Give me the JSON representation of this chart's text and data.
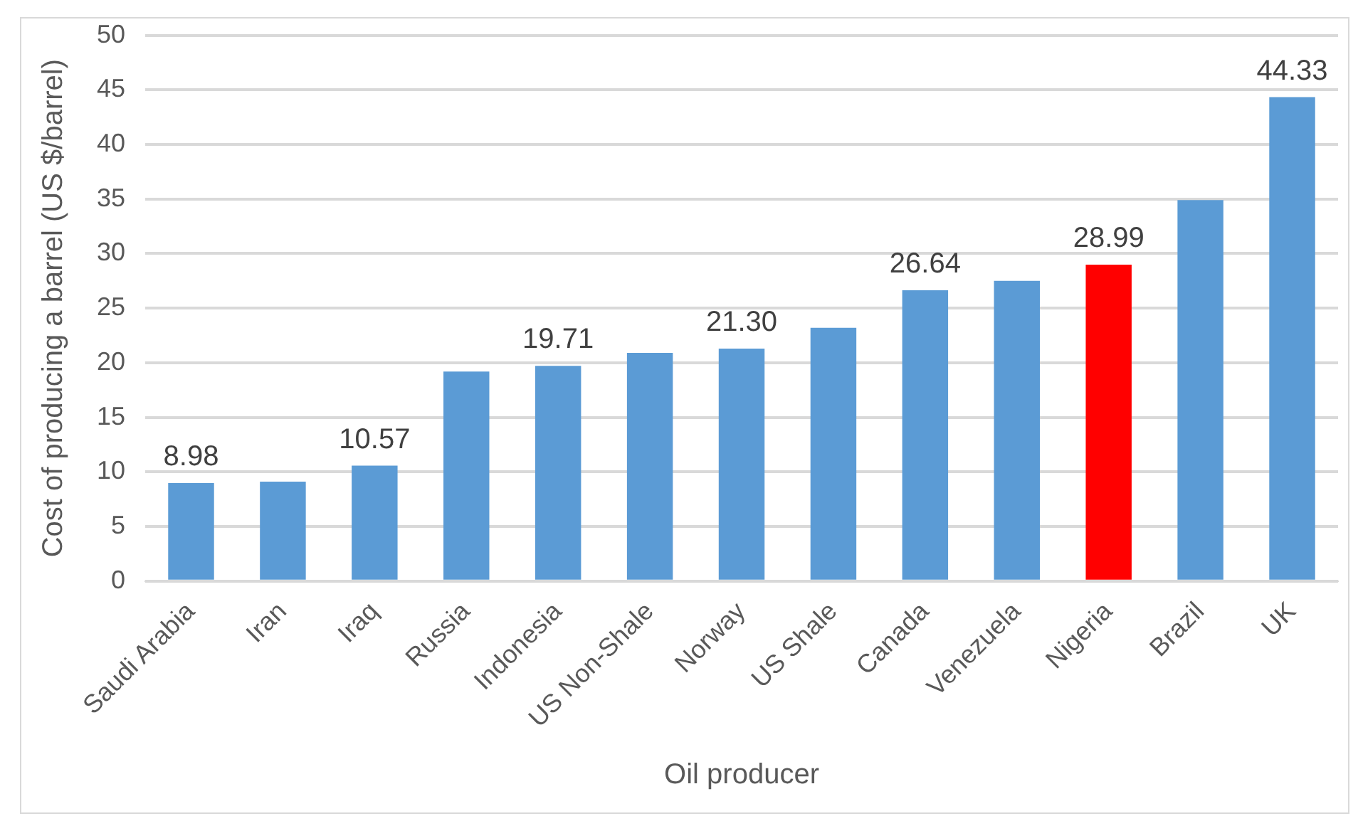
{
  "chart_data": {
    "type": "bar",
    "xlabel": "Oil producer",
    "ylabel": "Cost of producing a barrel (US $/barrel)",
    "categories": [
      "Saudi Arabia",
      "Iran",
      "Iraq",
      "Russia",
      "Indonesia",
      "US Non-Shale",
      "Norway",
      "US Shale",
      "Canada",
      "Venezuela",
      "Nigeria",
      "Brazil",
      "UK"
    ],
    "values": [
      8.98,
      9.1,
      10.57,
      19.2,
      19.71,
      20.9,
      21.3,
      23.2,
      26.64,
      27.5,
      28.99,
      34.9,
      44.33
    ],
    "value_labels": [
      "8.98",
      null,
      "10.57",
      null,
      "19.71",
      null,
      "21.30",
      null,
      "26.64",
      null,
      "28.99",
      null,
      "44.33"
    ],
    "colors": [
      "#5b9bd5",
      "#5b9bd5",
      "#5b9bd5",
      "#5b9bd5",
      "#5b9bd5",
      "#5b9bd5",
      "#5b9bd5",
      "#5b9bd5",
      "#5b9bd5",
      "#5b9bd5",
      "#ff0000",
      "#5b9bd5",
      "#5b9bd5"
    ],
    "ylim": [
      0,
      50
    ],
    "yticks": [
      0,
      5,
      10,
      15,
      20,
      25,
      30,
      35,
      40,
      45,
      50
    ],
    "grid": "y",
    "legend": false
  }
}
